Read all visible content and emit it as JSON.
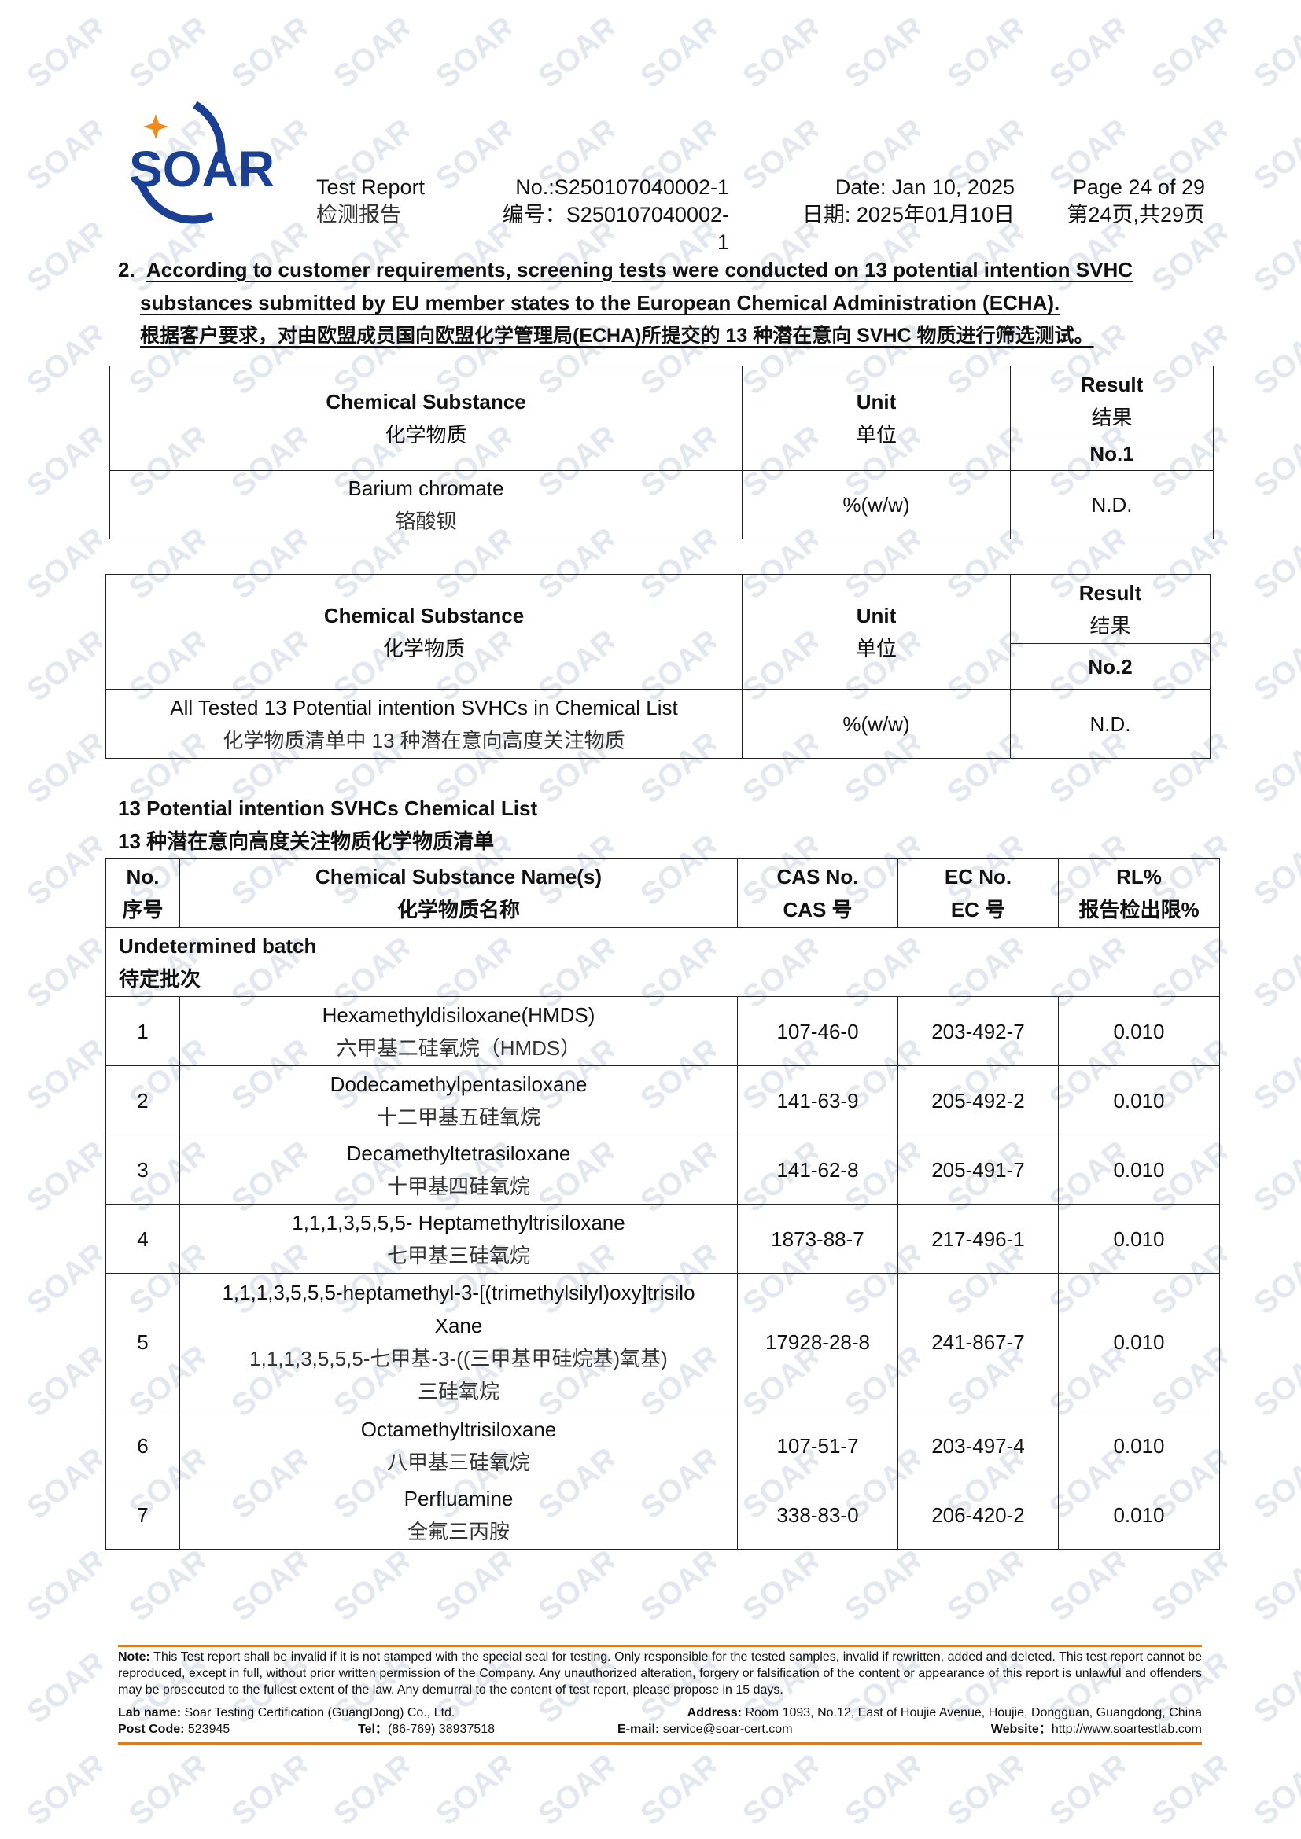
{
  "logo": {
    "text": "SOAR",
    "color": "#1b3f93",
    "star_color": "#f08a1c"
  },
  "header": {
    "title_en": "Test Report",
    "title_zh": "检测报告",
    "no_en": "No.:S250107040002-1",
    "no_zh": "编号：S250107040002-1",
    "date_en": "Date: Jan 10, 2025",
    "date_zh": "日期: 2025年01月10日",
    "page_en": "Page 24 of 29",
    "page_zh": "第24页,共29页"
  },
  "section": {
    "number": "2.",
    "line1": "According to customer requirements, screening tests were conducted on 13 potential intention SVHC",
    "line2": "substances submitted by EU member states to the European Chemical Administration (ECHA).",
    "line3": "根据客户要求，对由欧盟成员国向欧盟化学管理局(ECHA)所提交的 13 种潜在意向 SVHC 物质进行筛选测试。"
  },
  "table1": {
    "h_sub_en": "Chemical Substance",
    "h_sub_zh": "化学物质",
    "h_unit_en": "Unit",
    "h_unit_zh": "单位",
    "h_res_en": "Result",
    "h_res_zh": "结果",
    "h_no": "No.1",
    "row": {
      "sub_en": "Barium chromate",
      "sub_zh": "铬酸钡",
      "unit": "%(w/w)",
      "result": "N.D."
    }
  },
  "table2": {
    "h_sub_en": "Chemical Substance",
    "h_sub_zh": "化学物质",
    "h_unit_en": "Unit",
    "h_unit_zh": "单位",
    "h_res_en": "Result",
    "h_res_zh": "结果",
    "h_no": "No.2",
    "row": {
      "sub_en": "All Tested 13 Potential intention SVHCs in Chemical List",
      "sub_zh": "化学物质清单中 13 种潜在意向高度关注物质",
      "unit": "%(w/w)",
      "result": "N.D."
    }
  },
  "list": {
    "title_en": "13 Potential intention SVHCs Chemical List",
    "title_zh": "13 种潜在意向高度关注物质化学物质清单",
    "headers": {
      "no_en": "No.",
      "no_zh": "序号",
      "name_en": "Chemical Substance Name(s)",
      "name_zh": "化学物质名称",
      "cas_en": "CAS No.",
      "cas_zh": "CAS 号",
      "ec_en": "EC No.",
      "ec_zh": "EC 号",
      "rl_en": "RL%",
      "rl_zh": "报告检出限%"
    },
    "group_en": "Undetermined batch",
    "group_zh": "待定批次",
    "rows": [
      {
        "no": "1",
        "name_en": "Hexamethyldisiloxane(HMDS)",
        "name_zh": "六甲基二硅氧烷（HMDS）",
        "cas": "107-46-0",
        "ec": "203-492-7",
        "rl": "0.010"
      },
      {
        "no": "2",
        "name_en": "Dodecamethylpentasiloxane",
        "name_zh": "十二甲基五硅氧烷",
        "cas": "141-63-9",
        "ec": "205-492-2",
        "rl": "0.010"
      },
      {
        "no": "3",
        "name_en": "Decamethyltetrasiloxane",
        "name_zh": "十甲基四硅氧烷",
        "cas": "141-62-8",
        "ec": "205-491-7",
        "rl": "0.010"
      },
      {
        "no": "4",
        "name_en": "1,1,1,3,5,5,5- Heptamethyltrisiloxane",
        "name_zh": "七甲基三硅氧烷",
        "cas": "1873-88-7",
        "ec": "217-496-1",
        "rl": "0.010"
      },
      {
        "no": "5",
        "name_en": "1,1,1,3,5,5,5-heptamethyl-3-[(trimethylsilyl)oxy]trisilo",
        "name_en2": "Xane",
        "name_zh": "1,1,1,3,5,5,5-七甲基-3-((三甲基甲硅烷基)氧基)",
        "name_zh2": "三硅氧烷",
        "cas": "17928-28-8",
        "ec": "241-867-7",
        "rl": "0.010"
      },
      {
        "no": "6",
        "name_en": "Octamethyltrisiloxane",
        "name_zh": "八甲基三硅氧烷",
        "cas": "107-51-7",
        "ec": "203-497-4",
        "rl": "0.010"
      },
      {
        "no": "7",
        "name_en": "Perfluamine",
        "name_zh": "全氟三丙胺",
        "cas": "338-83-0",
        "ec": "206-420-2",
        "rl": "0.010"
      }
    ]
  },
  "footer": {
    "note_label": "Note:",
    "note": "This Test report shall be invalid if it is not stamped with the special seal for testing. Only responsible for the tested samples, invalid if rewritten, added and deleted. This test report cannot be reproduced, except in full, without prior written permission of the Company.   Any unauthorized alteration, forgery or falsification of the content or appearance of this report is unlawful and offenders may be prosecuted to the fullest extent of the law. Any demurral to the content of test report, please propose in 15 days.",
    "lab_label": "Lab name:",
    "lab": "Soar Testing Certification (GuangDong) Co., Ltd.",
    "address_label": "Address:",
    "address": "Room 1093, No.12, East of Houjie Avenue, Houjie, Dongguan, Guangdong, China",
    "post_label": "Post Code:",
    "post": "523945",
    "tel_label": "Tel：",
    "tel": "(86-769) 38937518",
    "email_label": "E-mail:",
    "email": "service@soar-cert.com",
    "web_label": "Website：",
    "web": "http://www.soartestlab.com",
    "accent_color": "#e07b22"
  },
  "watermark": "SOAR"
}
